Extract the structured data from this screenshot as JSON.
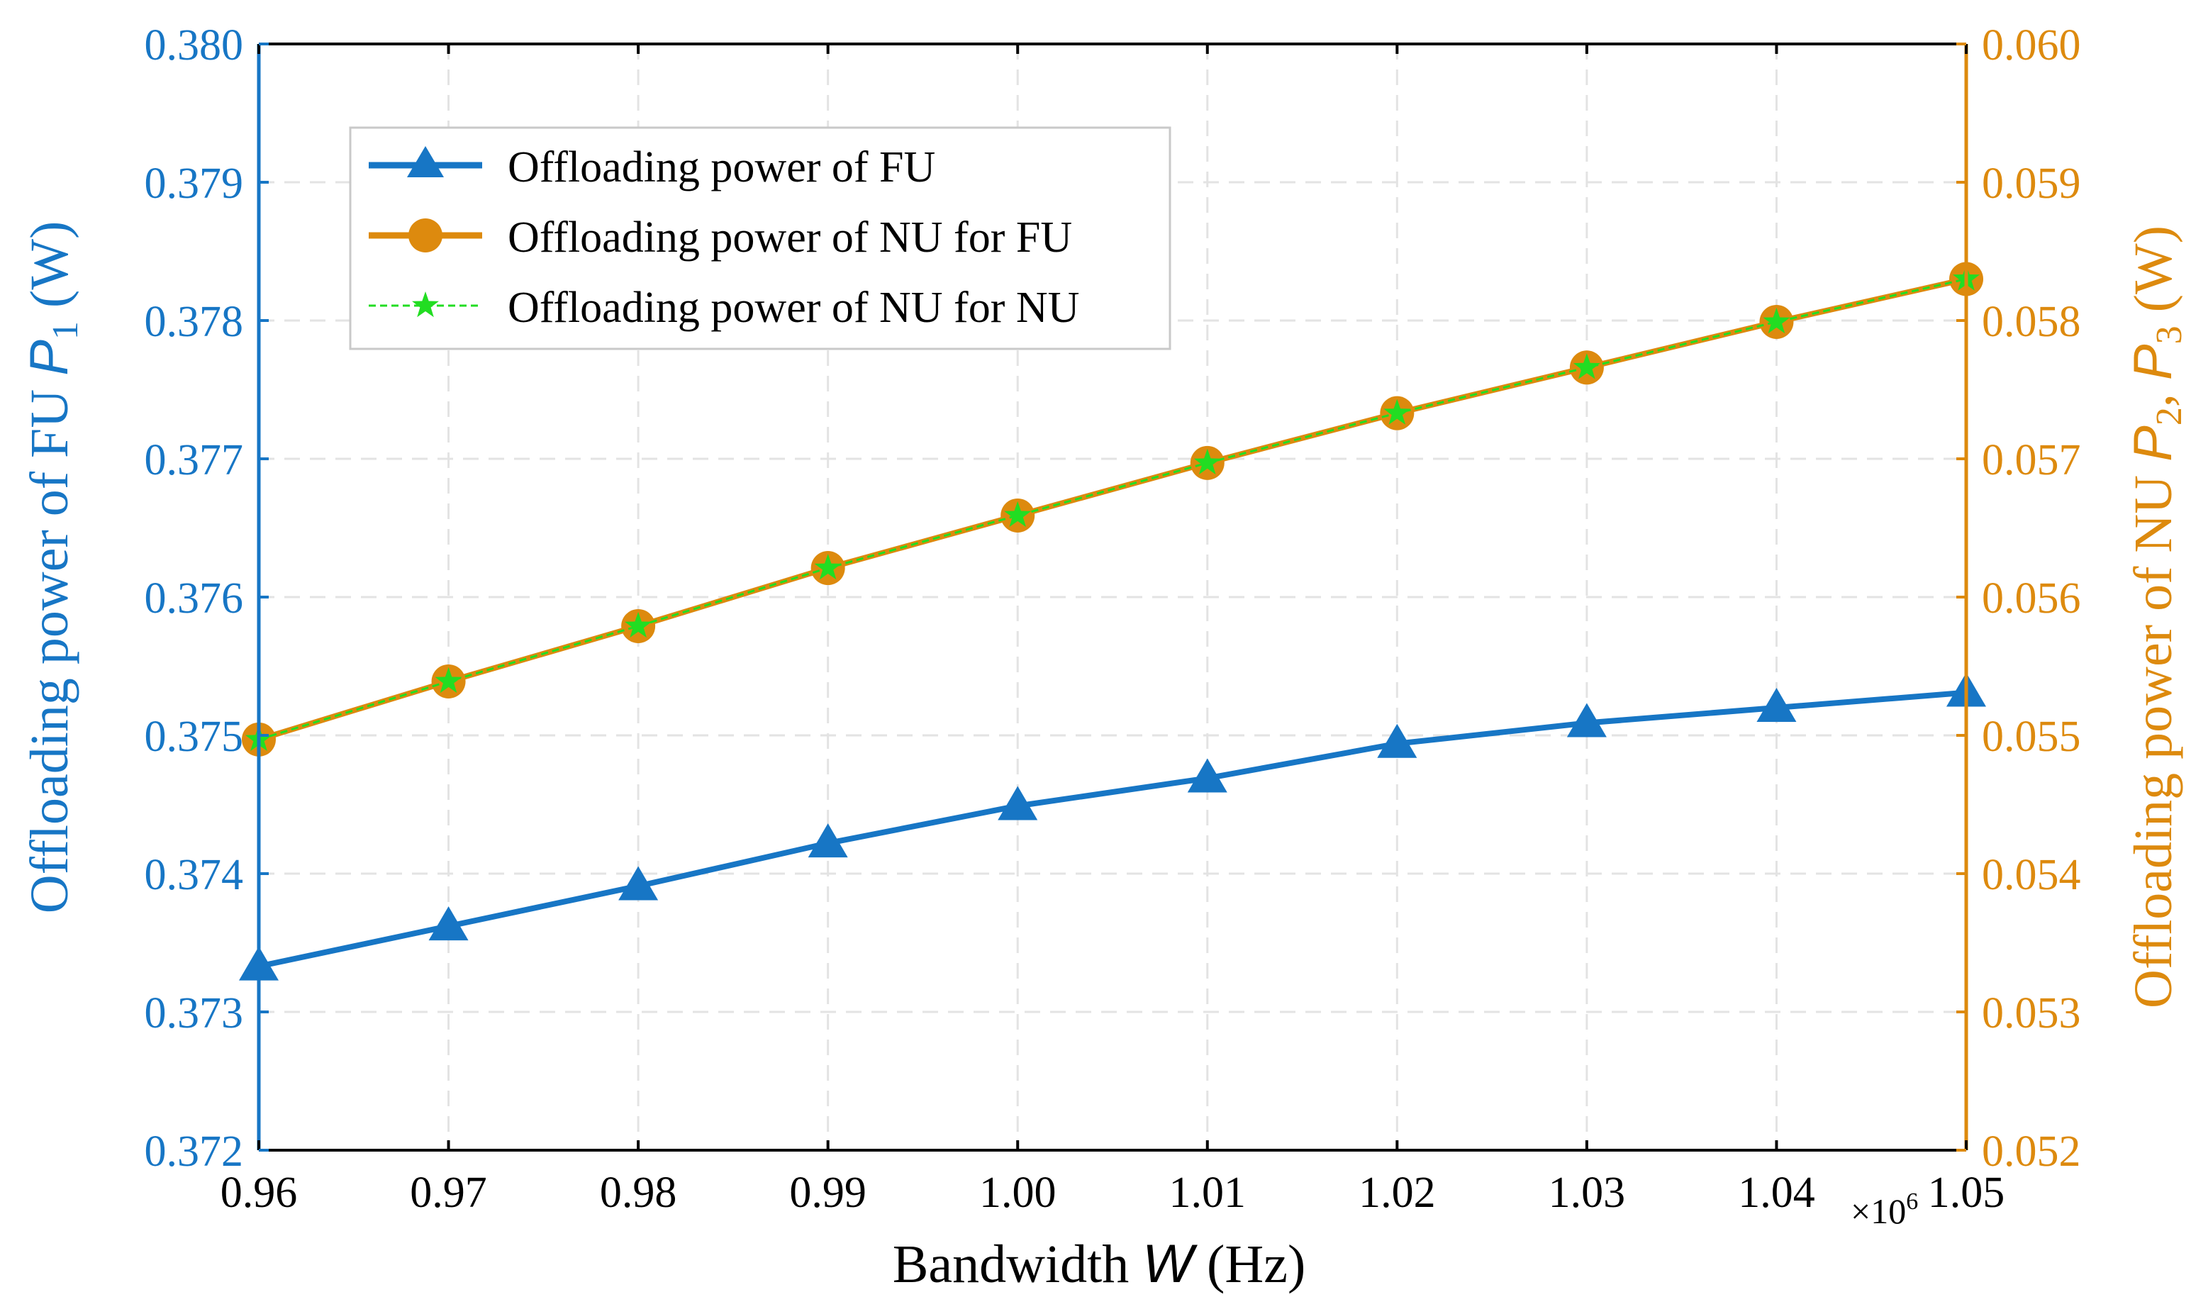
{
  "chart_data": {
    "type": "line",
    "x": [
      0.96,
      0.97,
      0.98,
      0.99,
      1.0,
      1.01,
      1.02,
      1.03,
      1.04,
      1.05
    ],
    "x_tick_labels": [
      "0.96",
      "0.97",
      "0.98",
      "0.99",
      "1.00",
      "1.01",
      "1.02",
      "1.03",
      "1.04",
      "1.05"
    ],
    "xlim": [
      0.96,
      1.05
    ],
    "x_multiplier": "×10",
    "x_multiplier_exp": "6",
    "xlabel": {
      "prefix": "Bandwidth ",
      "var": "W",
      "suffix": " (Hz)"
    },
    "y_left": {
      "lim": [
        0.372,
        0.38
      ],
      "ticks": [
        0.372,
        0.373,
        0.374,
        0.375,
        0.376,
        0.377,
        0.378,
        0.379,
        0.38
      ],
      "tick_labels": [
        "0.372",
        "0.373",
        "0.374",
        "0.375",
        "0.376",
        "0.377",
        "0.378",
        "0.379",
        "0.380"
      ],
      "label": {
        "prefix": "Offloading power of FU ",
        "var": "P",
        "sub": "1",
        "suffix": " (W)"
      },
      "color": "#1776c5"
    },
    "y_right": {
      "lim": [
        0.052,
        0.06
      ],
      "ticks": [
        0.052,
        0.053,
        0.054,
        0.055,
        0.056,
        0.057,
        0.058,
        0.059,
        0.06
      ],
      "tick_labels": [
        "0.052",
        "0.053",
        "0.054",
        "0.055",
        "0.056",
        "0.057",
        "0.058",
        "0.059",
        "0.060"
      ],
      "label": {
        "prefix": "Offloading power of NU ",
        "var1": "P",
        "sub1": "2",
        "sep": ", ",
        "var2": "P",
        "sub2": "3",
        "suffix": " (W)"
      },
      "color": "#dd8a0e"
    },
    "grid": true,
    "legend_position": "top-left",
    "series": [
      {
        "name": "Offloading power of FU",
        "axis": "left",
        "color": "#1776c5",
        "marker": "triangle",
        "line": "solid",
        "values": [
          0.37333,
          0.37362,
          0.37391,
          0.37422,
          0.37449,
          0.37469,
          0.37494,
          0.37509,
          0.3752,
          0.37531
        ]
      },
      {
        "name": "Offloading power of NU for FU",
        "axis": "right",
        "color": "#dd8a0e",
        "marker": "circle",
        "line": "solid",
        "values": [
          0.05497,
          0.05539,
          0.05579,
          0.05621,
          0.05659,
          0.05697,
          0.05733,
          0.05766,
          0.05799,
          0.0583
        ]
      },
      {
        "name": "Offloading power of NU for NU",
        "axis": "right",
        "color": "#22dd22",
        "marker": "star",
        "line": "dashed",
        "values": [
          0.05497,
          0.05539,
          0.05579,
          0.05621,
          0.05659,
          0.05697,
          0.05733,
          0.05766,
          0.05799,
          0.0583
        ]
      }
    ]
  }
}
